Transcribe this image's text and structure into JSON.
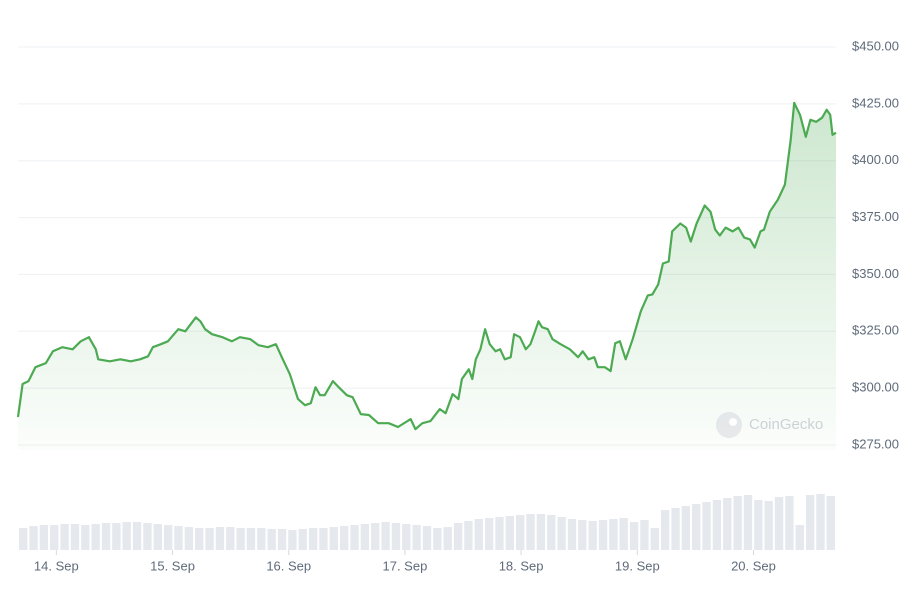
{
  "chart_data": {
    "type": "line",
    "color": "#4caa52",
    "grid": true,
    "watermark": "CoinGecko",
    "x": [
      13.67,
      13.71,
      13.76,
      13.82,
      13.91,
      13.97,
      14.05,
      14.14,
      14.21,
      14.28,
      14.34,
      14.36,
      14.46,
      14.55,
      14.64,
      14.72,
      14.79,
      14.83,
      14.9,
      14.96,
      15.05,
      15.11,
      15.2,
      15.24,
      15.28,
      15.34,
      15.43,
      15.51,
      15.58,
      15.67,
      15.74,
      15.82,
      15.89,
      15.94,
      16.01,
      16.08,
      16.14,
      16.19,
      16.23,
      16.27,
      16.31,
      16.38,
      16.43,
      16.5,
      16.55,
      16.62,
      16.69,
      16.77,
      16.86,
      16.94,
      17.05,
      17.09,
      17.15,
      17.22,
      17.3,
      17.35,
      17.41,
      17.46,
      17.49,
      17.55,
      17.58,
      17.61,
      17.65,
      17.69,
      17.73,
      17.78,
      17.82,
      17.86,
      17.91,
      17.94,
      17.99,
      18.04,
      18.08,
      18.12,
      18.15,
      18.18,
      18.23,
      18.27,
      18.34,
      18.42,
      18.49,
      18.53,
      18.58,
      18.63,
      18.66,
      18.72,
      18.77,
      18.81,
      18.85,
      18.9,
      18.96,
      19.03,
      19.09,
      19.13,
      19.18,
      19.22,
      19.27,
      19.3,
      19.37,
      19.42,
      19.46,
      19.51,
      19.58,
      19.63,
      19.67,
      19.71,
      19.76,
      19.82,
      19.87,
      19.92,
      19.97,
      20.01,
      20.06,
      20.09,
      20.14,
      20.21,
      20.27,
      20.32,
      20.35,
      20.4,
      20.45,
      20.49,
      20.54,
      20.59,
      20.63,
      20.66,
      20.68,
      20.71
    ],
    "values": [
      287.3,
      301.8,
      303.1,
      309.2,
      311.0,
      316.2,
      318.0,
      317.1,
      320.6,
      322.4,
      317.1,
      312.7,
      311.8,
      312.7,
      311.8,
      312.7,
      314.0,
      318.0,
      319.3,
      320.6,
      325.9,
      325.0,
      331.1,
      329.4,
      325.9,
      323.7,
      322.4,
      320.6,
      322.4,
      321.5,
      318.9,
      318.0,
      319.3,
      313.6,
      306.1,
      295.2,
      292.5,
      293.4,
      300.4,
      296.9,
      296.9,
      303.1,
      300.4,
      296.9,
      296.0,
      288.6,
      288.2,
      284.6,
      284.6,
      282.9,
      286.4,
      282.0,
      284.6,
      285.5,
      290.8,
      289.0,
      297.4,
      295.2,
      304.0,
      308.3,
      304.0,
      312.7,
      317.1,
      325.9,
      319.3,
      316.2,
      317.1,
      312.7,
      313.6,
      323.7,
      322.4,
      317.1,
      319.3,
      325.0,
      329.4,
      326.8,
      325.9,
      321.5,
      319.3,
      317.1,
      313.6,
      316.2,
      312.7,
      313.6,
      309.2,
      309.2,
      307.5,
      319.7,
      320.6,
      312.7,
      321.5,
      333.8,
      340.8,
      341.2,
      345.6,
      354.8,
      355.7,
      368.9,
      372.4,
      370.6,
      364.5,
      372.4,
      380.3,
      377.6,
      369.7,
      367.1,
      370.6,
      368.9,
      370.6,
      366.2,
      365.4,
      361.8,
      368.9,
      369.7,
      377.6,
      382.9,
      389.5,
      409.2,
      425.4,
      420.2,
      410.5,
      418.0,
      417.1,
      418.9,
      422.4,
      420.2,
      411.4,
      412.3
    ],
    "xlim": [
      13.67,
      20.71
    ],
    "xticks": [
      {
        "value": 14,
        "label": "14. Sep"
      },
      {
        "value": 15,
        "label": "15. Sep"
      },
      {
        "value": 16,
        "label": "16. Sep"
      },
      {
        "value": 17,
        "label": "17. Sep"
      },
      {
        "value": 18,
        "label": "18. Sep"
      },
      {
        "value": 19,
        "label": "19. Sep"
      },
      {
        "value": 20,
        "label": "20. Sep"
      }
    ],
    "ylim": [
      275,
      450
    ],
    "yticks": [
      {
        "value": 275,
        "label": "$275.00"
      },
      {
        "value": 300,
        "label": "$300.00"
      },
      {
        "value": 325,
        "label": "$325.00"
      },
      {
        "value": 350,
        "label": "$350.00"
      },
      {
        "value": 375,
        "label": "$375.00"
      },
      {
        "value": 400,
        "label": "$400.00"
      },
      {
        "value": 425,
        "label": "$425.00"
      },
      {
        "value": 450,
        "label": "$450.00"
      }
    ],
    "volume": {
      "color": "#e5e8ed",
      "ylim": [
        0,
        60
      ],
      "values": [
        22,
        24,
        25,
        25,
        26,
        26,
        25,
        26,
        27,
        27,
        28,
        28,
        27,
        26,
        25,
        24,
        23,
        22,
        22,
        23,
        23,
        22,
        22,
        22,
        21,
        21,
        20,
        21,
        22,
        22,
        23,
        24,
        25,
        26,
        27,
        28,
        27,
        26,
        25,
        24,
        22,
        23,
        27,
        29,
        31,
        32,
        33,
        34,
        35,
        36,
        36,
        35,
        33,
        31,
        30,
        29,
        30,
        31,
        32,
        28,
        30,
        22,
        40,
        42,
        44,
        46,
        48,
        50,
        52,
        54,
        55,
        50,
        49,
        53,
        54,
        25,
        55,
        56,
        54
      ]
    }
  }
}
